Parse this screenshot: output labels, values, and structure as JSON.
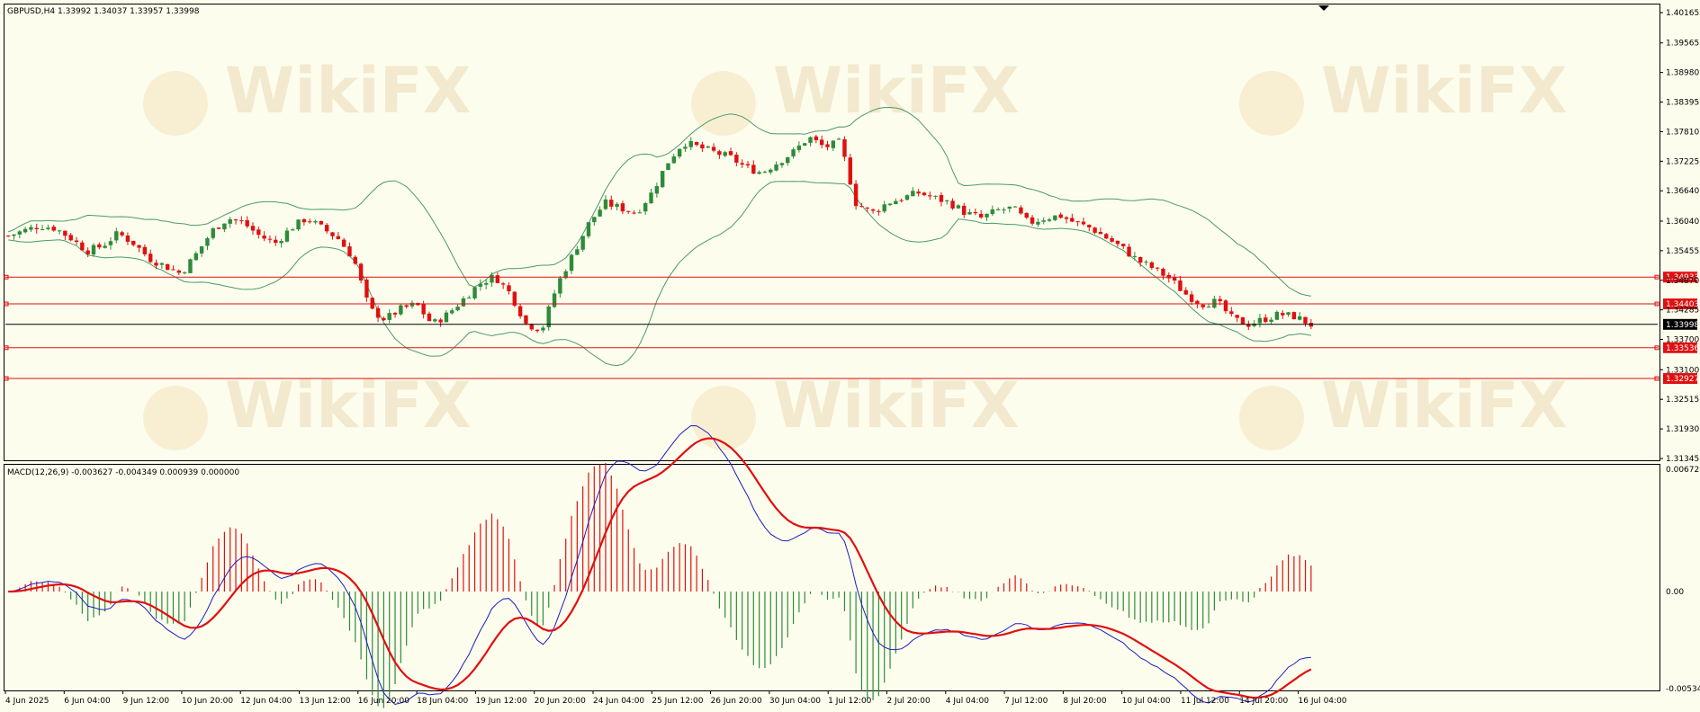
{
  "header": {
    "title": "GBPUSD,H4  1.33992 1.34037 1.33957 1.33998",
    "macd_title": "MACD(12,26,9) -0.003627 -0.004349 0.000939 0.000000",
    "watermark": "WikiFX"
  },
  "colors": {
    "background": "#fdfdee",
    "bull": "#2e8b3a",
    "bear": "#e01010",
    "bands": "#4a9a6a",
    "level": "#e01010",
    "macd_main": "#1c1cc0",
    "macd_signal": "#e01010"
  },
  "chart_data": [
    {
      "type": "candlestick",
      "symbol": "GBPUSD",
      "timeframe": "H4",
      "ohlc_last": {
        "open": 1.33992,
        "high": 1.34037,
        "low": 1.33957,
        "close": 1.33998
      },
      "ylim": [
        1.31345,
        1.40165
      ],
      "y_ticks": [
        "1.40165",
        "1.39565",
        "1.38980",
        "1.38395",
        "1.37810",
        "1.37225",
        "1.36640",
        "1.36040",
        "1.35455",
        "1.34870",
        "1.34285",
        "1.33700",
        "1.33100",
        "1.32515",
        "1.31930",
        "1.31345"
      ],
      "x_ticks": [
        "4 Jun 2025",
        "6 Jun 04:00",
        "9 Jun 12:00",
        "10 Jun 20:00",
        "12 Jun 04:00",
        "13 Jun 12:00",
        "16 Jun 20:00",
        "18 Jun 04:00",
        "19 Jun 12:00",
        "20 Jun 20:00",
        "24 Jun 04:00",
        "25 Jun 12:00",
        "26 Jun 20:00",
        "30 Jun 04:00",
        "1 Jul 12:00",
        "2 Jul 20:00",
        "4 Jul 04:00",
        "7 Jul 12:00",
        "8 Jul 20:00",
        "10 Jul 04:00",
        "11 Jul 12:00",
        "14 Jul 20:00",
        "16 Jul 04:00"
      ],
      "close_path": [
        1.3575,
        1.3585,
        1.3595,
        1.359,
        1.357,
        1.3545,
        1.3555,
        1.358,
        1.356,
        1.353,
        1.3515,
        1.35,
        1.354,
        1.3585,
        1.361,
        1.36,
        1.3575,
        1.356,
        1.359,
        1.361,
        1.359,
        1.357,
        1.353,
        1.343,
        1.341,
        1.343,
        1.344,
        1.34,
        1.342,
        1.345,
        1.348,
        1.3495,
        1.346,
        1.34,
        1.339,
        1.348,
        1.354,
        1.36,
        1.364,
        1.363,
        1.362,
        1.366,
        1.372,
        1.376,
        1.375,
        1.374,
        1.373,
        1.371,
        1.37,
        1.372,
        1.374,
        1.377,
        1.375,
        1.376,
        1.364,
        1.362,
        1.364,
        1.365,
        1.366,
        1.365,
        1.364,
        1.362,
        1.361,
        1.3625,
        1.363,
        1.36,
        1.361,
        1.3615,
        1.36,
        1.359,
        1.357,
        1.355,
        1.3525,
        1.351,
        1.349,
        1.346,
        1.344,
        1.3445,
        1.341,
        1.34,
        1.341,
        1.342,
        1.3415,
        1.3399
      ],
      "price_labels": [
        {
          "label": "1.34933",
          "value": 1.34933,
          "kind": "level"
        },
        {
          "label": "1.34403",
          "value": 1.34403,
          "kind": "level"
        },
        {
          "label": "1.33998",
          "value": 1.33998,
          "kind": "current"
        },
        {
          "label": "1.33536",
          "value": 1.33536,
          "kind": "level"
        },
        {
          "label": "1.32927",
          "value": 1.32927,
          "kind": "level"
        }
      ]
    },
    {
      "type": "macd",
      "parameters": [
        12,
        26,
        9
      ],
      "values": {
        "main": -0.003627,
        "signal": -0.004349,
        "histogram": 0.000939
      },
      "ylim": [
        -0.005342,
        0.006727
      ],
      "y_ticks": [
        "0.006727",
        "0.00",
        "-0.005342"
      ]
    }
  ]
}
